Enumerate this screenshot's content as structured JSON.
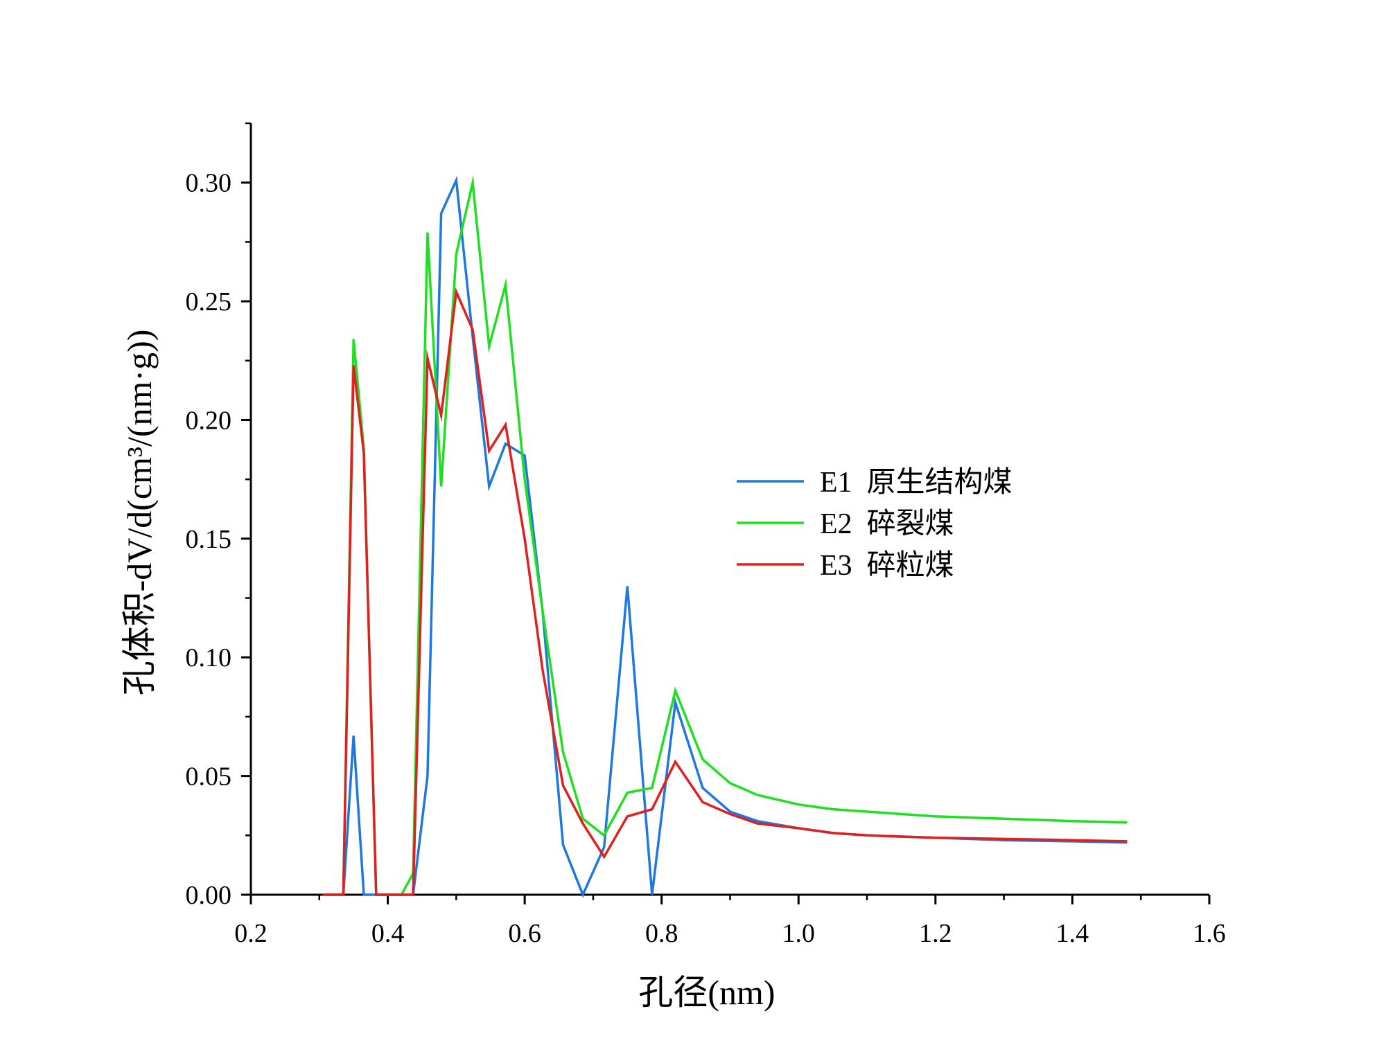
{
  "chart_data": {
    "type": "line",
    "xlabel": "孔径(nm)",
    "ylabel": "孔体积-dV/d(cm³/(nm·g))",
    "xlim": [
      0.2,
      1.6
    ],
    "ylim": [
      0.0,
      0.325
    ],
    "x_ticks": [
      "0.2",
      "0.4",
      "0.6",
      "0.8",
      "1.0",
      "1.2",
      "1.4",
      "1.6"
    ],
    "y_ticks": [
      "0.00",
      "0.05",
      "0.10",
      "0.15",
      "0.20",
      "0.25",
      "0.30"
    ],
    "grid": false,
    "legend_position": "center-right",
    "series": [
      {
        "name": "E1  原生结构煤",
        "color": "#1f77e0",
        "x": [
          0.305,
          0.335,
          0.35,
          0.365,
          0.383,
          0.41,
          0.437,
          0.458,
          0.478,
          0.5,
          0.524,
          0.548,
          0.572,
          0.6,
          0.626,
          0.656,
          0.685,
          0.716,
          0.75,
          0.786,
          0.82,
          0.86,
          0.9,
          0.94,
          1.0,
          1.05,
          1.1,
          1.2,
          1.3,
          1.4,
          1.48
        ],
        "y": [
          0.0,
          0.0,
          0.067,
          0.0,
          0.0,
          0.0,
          0.0,
          0.05,
          0.287,
          0.301,
          0.235,
          0.172,
          0.19,
          0.185,
          0.12,
          0.021,
          0.0,
          0.02,
          0.13,
          0.0,
          0.081,
          0.045,
          0.035,
          0.031,
          0.028,
          0.026,
          0.025,
          0.024,
          0.023,
          0.0225,
          0.022
        ]
      },
      {
        "name": "E2  碎裂煤",
        "color": "#1fe01f",
        "x": [
          0.305,
          0.335,
          0.35,
          0.365,
          0.383,
          0.41,
          0.42,
          0.437,
          0.458,
          0.478,
          0.5,
          0.524,
          0.548,
          0.572,
          0.6,
          0.626,
          0.656,
          0.685,
          0.716,
          0.75,
          0.786,
          0.82,
          0.86,
          0.9,
          0.94,
          1.0,
          1.05,
          1.1,
          1.2,
          1.3,
          1.4,
          1.48
        ],
        "y": [
          0.0,
          0.0,
          0.234,
          0.188,
          0.0,
          0.0,
          0.0,
          0.009,
          0.279,
          0.172,
          0.27,
          0.3,
          0.231,
          0.257,
          0.175,
          0.12,
          0.06,
          0.032,
          0.025,
          0.043,
          0.045,
          0.086,
          0.057,
          0.047,
          0.042,
          0.038,
          0.036,
          0.035,
          0.033,
          0.032,
          0.031,
          0.0305
        ]
      },
      {
        "name": "E3  碎粒煤",
        "color": "#e01f1f",
        "x": [
          0.305,
          0.335,
          0.35,
          0.365,
          0.383,
          0.41,
          0.437,
          0.458,
          0.478,
          0.5,
          0.524,
          0.548,
          0.572,
          0.6,
          0.626,
          0.656,
          0.685,
          0.716,
          0.75,
          0.786,
          0.82,
          0.86,
          0.9,
          0.94,
          1.0,
          1.05,
          1.1,
          1.2,
          1.3,
          1.4,
          1.48
        ],
        "y": [
          0.0,
          0.0,
          0.223,
          0.186,
          0.0,
          0.0,
          0.0,
          0.226,
          0.202,
          0.254,
          0.238,
          0.187,
          0.198,
          0.15,
          0.095,
          0.046,
          0.03,
          0.016,
          0.033,
          0.036,
          0.056,
          0.039,
          0.034,
          0.03,
          0.028,
          0.026,
          0.025,
          0.024,
          0.0235,
          0.023,
          0.0225
        ]
      }
    ]
  }
}
